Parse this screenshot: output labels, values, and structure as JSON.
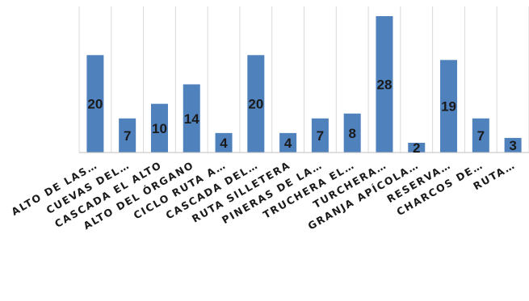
{
  "chart_data": {
    "type": "bar",
    "categories": [
      "ALTO DE LAS…",
      "CUEVAS DEL…",
      "CASCADA EL ALTO",
      "ALTO DEL ÓRGANO",
      "CICLO RUTA A…",
      "CASCADA DEL…",
      "RUTA SILLETERA",
      "PINERAS DE LA…",
      "TRUCHERA EL…",
      "TURCHERA…",
      "GRANJA APÍCOLA…",
      "RESERVA…",
      "CHARCOS DE…",
      "RUTA…"
    ],
    "values": [
      20,
      7,
      10,
      14,
      4,
      20,
      4,
      7,
      8,
      28,
      2,
      19,
      7,
      3
    ],
    "ylim": [
      0,
      28
    ],
    "grid": "vertical",
    "bar_color": "#4f81bd",
    "grid_color": "#d9d9d9",
    "axis_color": "#bfbfbf"
  }
}
